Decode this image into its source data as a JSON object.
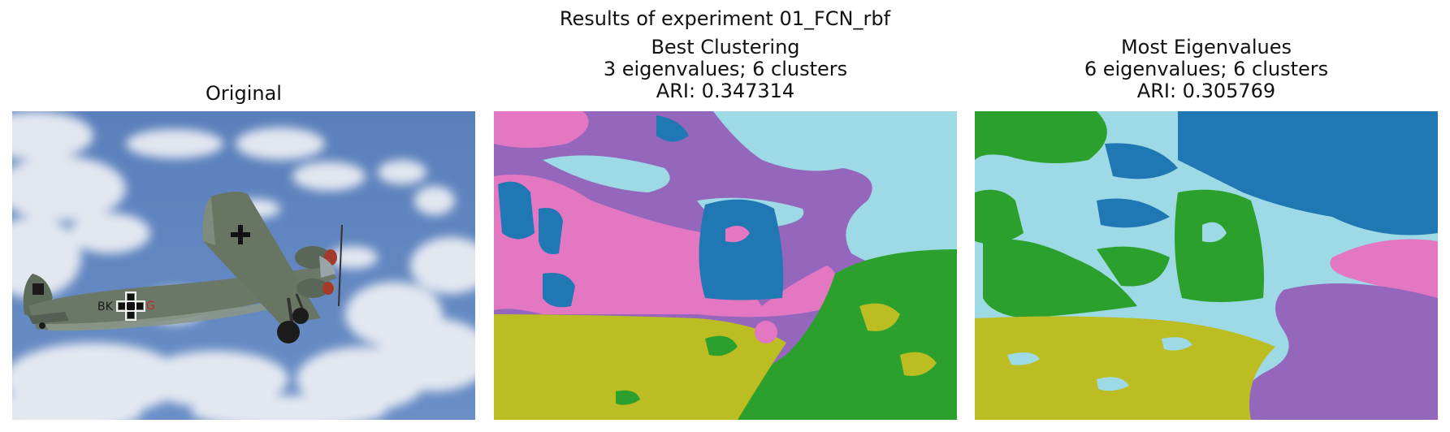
{
  "figure": {
    "title": "Results of experiment 01_FCN_rbf"
  },
  "panels": [
    {
      "name": "original",
      "title_lines": [
        "Original"
      ]
    },
    {
      "name": "best-clustering",
      "title_lines": [
        "Best Clustering",
        "3 eigenvalues; 6 clusters",
        "ARI: 0.347314"
      ],
      "eigenvalues": 3,
      "clusters": 6,
      "ari": 0.347314
    },
    {
      "name": "most-eigenvalues",
      "title_lines": [
        "Most Eigenvalues",
        "6 eigenvalues; 6 clusters",
        "ARI: 0.305769"
      ],
      "eigenvalues": 6,
      "clusters": 6,
      "ari": 0.305769
    }
  ],
  "colors": {
    "sky": "#5f83bd",
    "cloud": "#eef0f4",
    "plane": "#6b7867",
    "cluster_blue": "#1f77b4",
    "cluster_purple": "#9467bd",
    "cluster_pink": "#e377c2",
    "cluster_cyan": "#9edae5",
    "cluster_green": "#2ca02c",
    "cluster_olive": "#bcbd22"
  }
}
